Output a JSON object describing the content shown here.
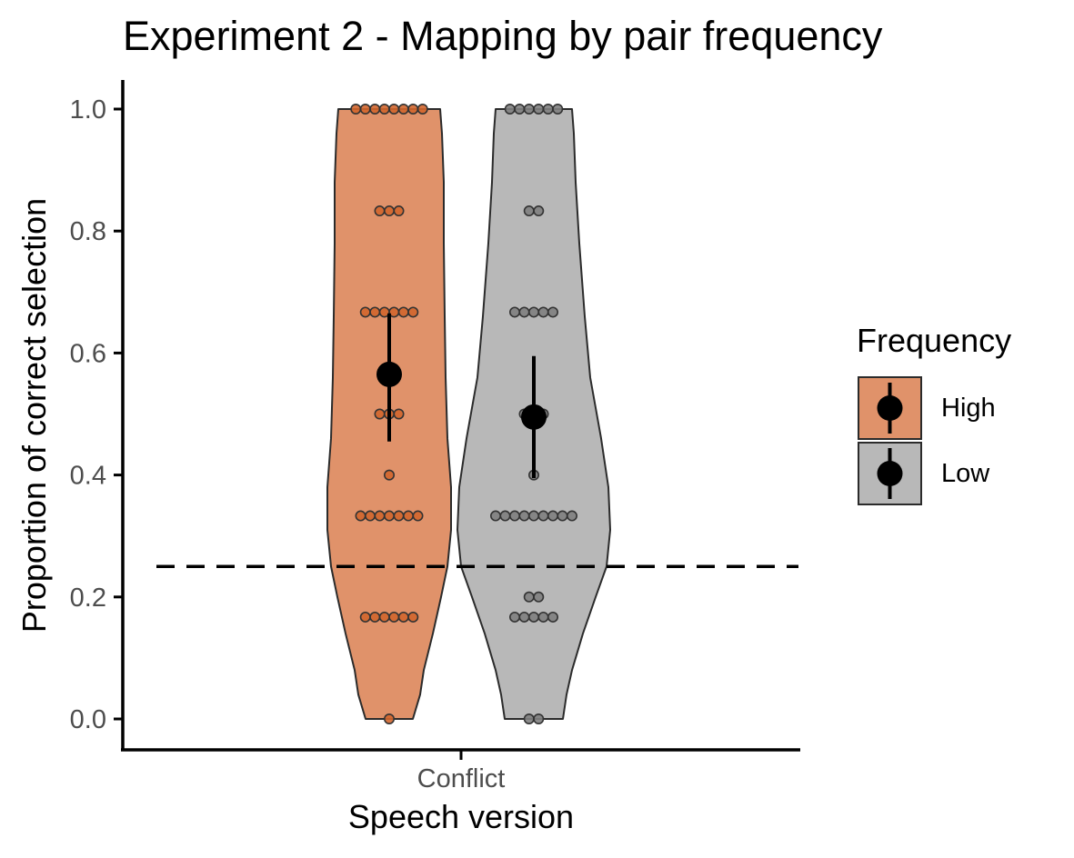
{
  "chart_data": {
    "type": "violin",
    "title": "Experiment 2 - Mapping by pair frequency",
    "xlabel": "Speech version",
    "ylabel": "Proportion of correct selection",
    "categories": [
      "Conflict"
    ],
    "ylim": [
      0,
      1
    ],
    "yticks": [
      "0.0",
      "0.2",
      "0.4",
      "0.6",
      "0.8",
      "1.0"
    ],
    "grid": false,
    "legend": {
      "title": "Frequency",
      "placement": "right"
    },
    "reference_line": {
      "y": 0.25,
      "style": "dashed"
    },
    "series": [
      {
        "name": "High",
        "color": "#E0926A",
        "point_color": "#D2662E",
        "mean": 0.565,
        "ci": [
          0.455,
          0.665
        ],
        "points": [
          {
            "y": 1.0,
            "n": 8
          },
          {
            "y": 0.833,
            "n": 3
          },
          {
            "y": 0.667,
            "n": 6
          },
          {
            "y": 0.5,
            "n": 3
          },
          {
            "y": 0.4,
            "n": 1
          },
          {
            "y": 0.333,
            "n": 7
          },
          {
            "y": 0.167,
            "n": 6
          },
          {
            "y": 0.0,
            "n": 1
          }
        ]
      },
      {
        "name": "Low",
        "color": "#B8B8B8",
        "point_color": "#7F7F7F",
        "mean": 0.495,
        "ci": [
          0.395,
          0.595
        ],
        "points": [
          {
            "y": 1.0,
            "n": 6
          },
          {
            "y": 0.833,
            "n": 2
          },
          {
            "y": 0.667,
            "n": 5
          },
          {
            "y": 0.5,
            "n": 3
          },
          {
            "y": 0.4,
            "n": 1
          },
          {
            "y": 0.333,
            "n": 9
          },
          {
            "y": 0.2,
            "n": 2
          },
          {
            "y": 0.167,
            "n": 5
          },
          {
            "y": 0.0,
            "n": 2
          }
        ]
      }
    ]
  }
}
